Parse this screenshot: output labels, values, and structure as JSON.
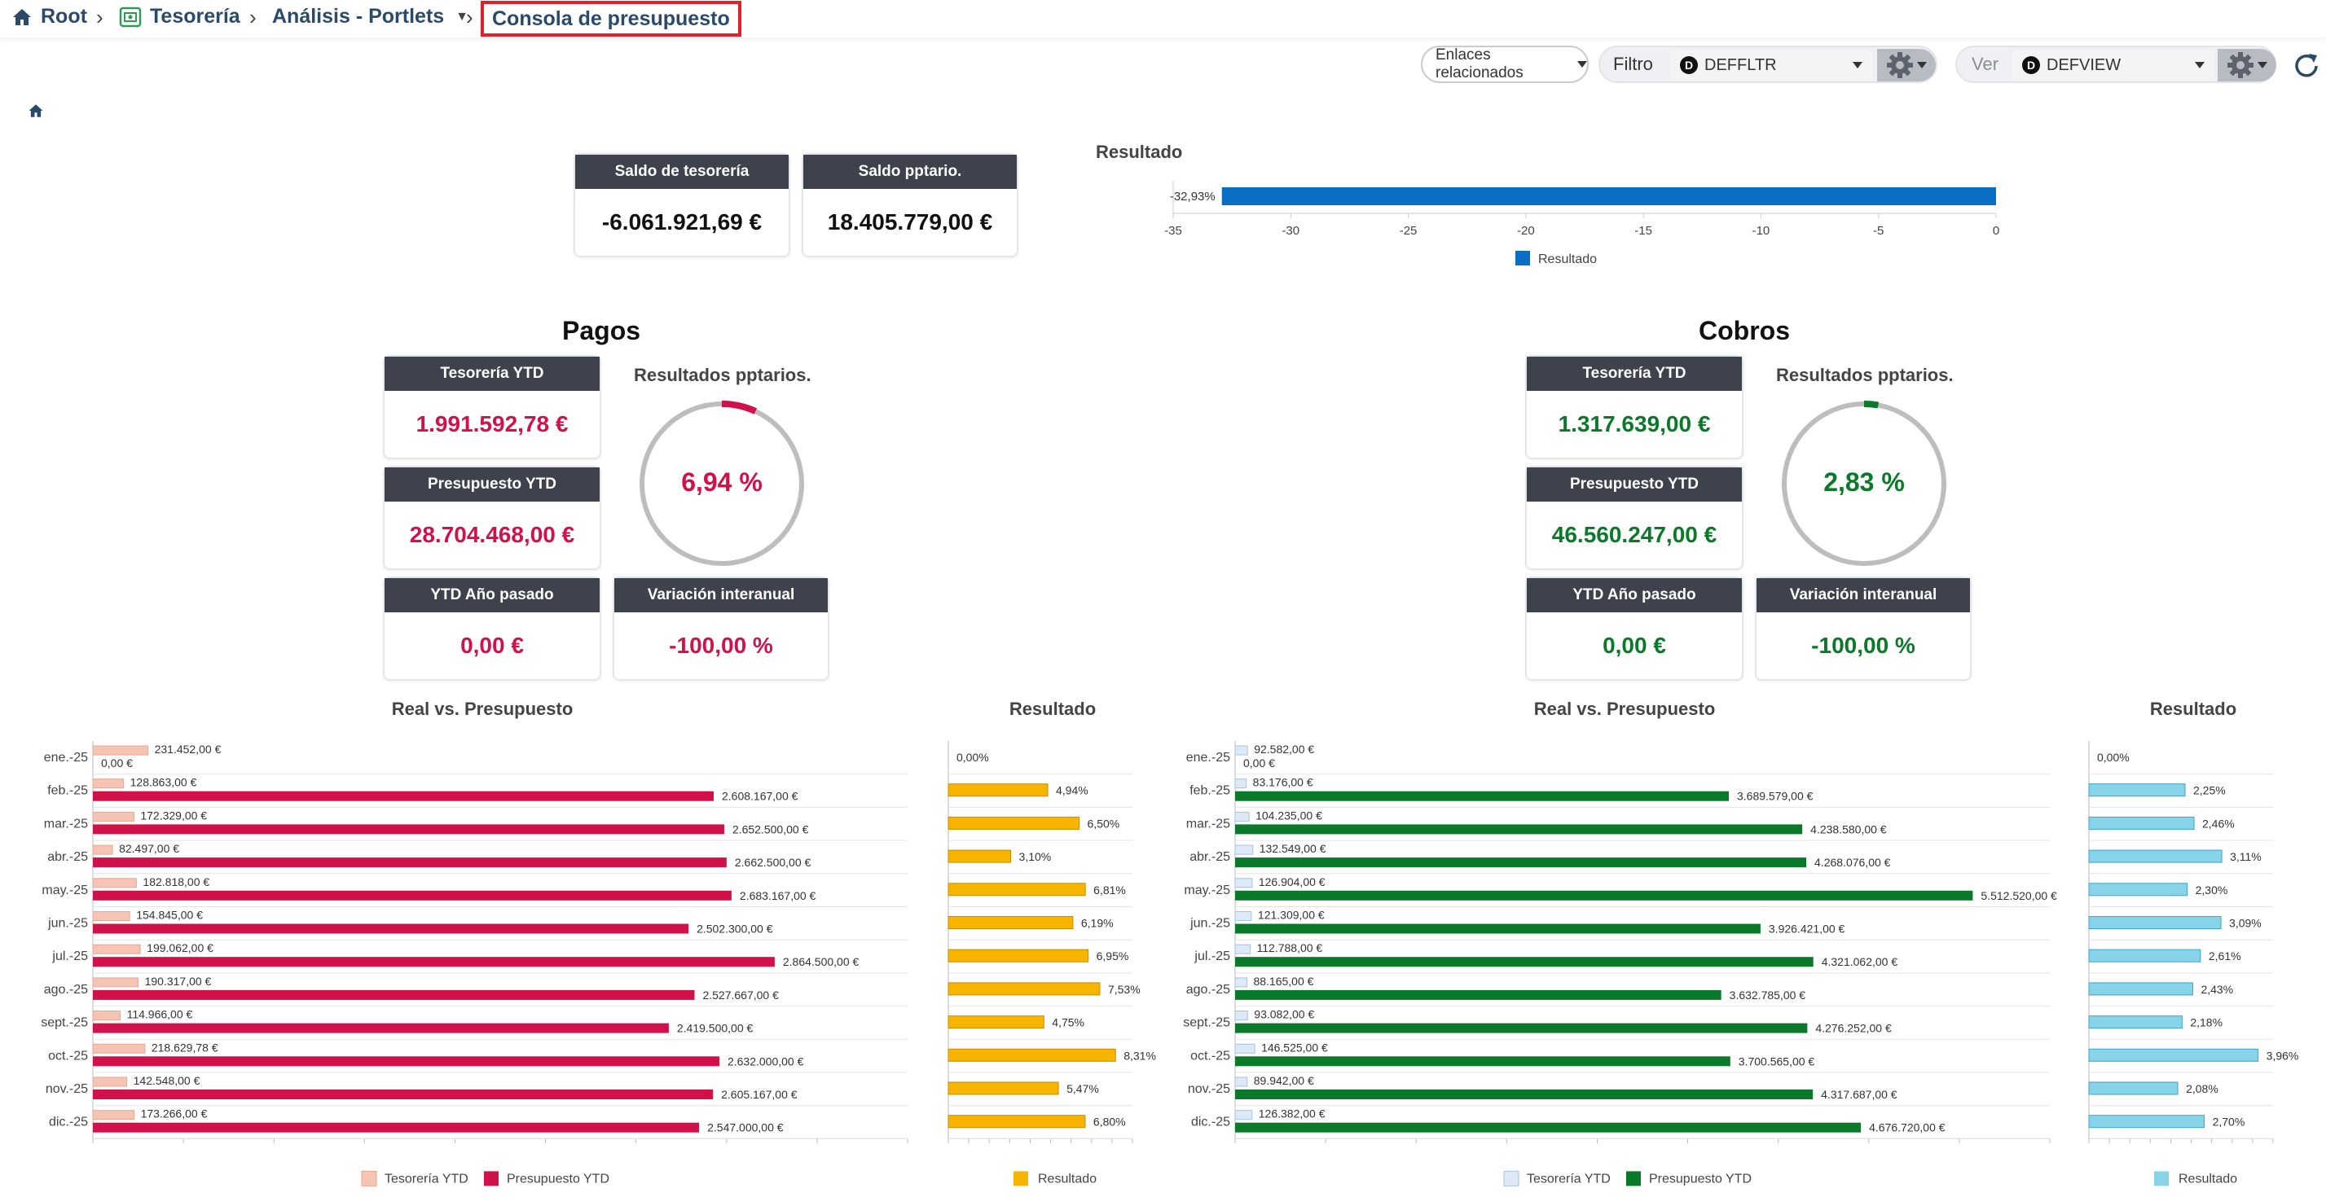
{
  "breadcrumb": {
    "root": "Root",
    "tesoreria": "Tesorería",
    "analisis": "Análisis - Portlets",
    "current": "Consola de presupuesto"
  },
  "toolbar": {
    "related_links": "Enlaces relacionados",
    "filter_label": "Filtro",
    "filter_value": "DEFFLTR",
    "view_label": "Ver",
    "view_value": "DEFVIEW",
    "badge_letter": "D"
  },
  "kpis": {
    "saldo_tesoreria": {
      "label": "Saldo de tesorería",
      "value": "-6.061.921,69 €"
    },
    "saldo_pptario": {
      "label": "Saldo pptario.",
      "value": "18.405.779,00 €"
    }
  },
  "resultado_chart": {
    "title": "Resultado",
    "value_label": "-32,93%",
    "legend": "Resultado",
    "color": "#0a6fc2"
  },
  "pagos": {
    "title": "Pagos",
    "color": "#d0114a",
    "tesoreria_ytd": {
      "label": "Tesorería YTD",
      "value": "1.991.592,78 €"
    },
    "presupuesto_ytd": {
      "label": "Presupuesto YTD",
      "value": "28.704.468,00 €"
    },
    "ytd_ano_pasado": {
      "label": "YTD Año pasado",
      "value": "0,00 €"
    },
    "variacion": {
      "label": "Variación interanual",
      "value": "-100,00 %"
    },
    "gauge": {
      "title": "Resultados pptarios.",
      "value_label": "6,94 %",
      "fraction": 0.0694
    }
  },
  "cobros": {
    "title": "Cobros",
    "color": "#0a7a2a",
    "tesoreria_ytd": {
      "label": "Tesorería YTD",
      "value": "1.317.639,00 €"
    },
    "presupuesto_ytd": {
      "label": "Presupuesto YTD",
      "value": "46.560.247,00 €"
    },
    "ytd_ano_pasado": {
      "label": "YTD Año pasado",
      "value": "0,00 €"
    },
    "variacion": {
      "label": "Variación interanual",
      "value": "-100,00 %"
    },
    "gauge": {
      "title": "Resultados pptarios.",
      "value_label": "2,83 %",
      "fraction": 0.0283
    }
  },
  "chart_data": [
    {
      "type": "bar",
      "orientation": "horizontal",
      "title": "Resultado",
      "categories": [
        ""
      ],
      "series": [
        {
          "name": "Resultado",
          "values": [
            -32.93
          ]
        }
      ],
      "data_labels": [
        "-32,93%"
      ],
      "xlim": [
        -35,
        0
      ],
      "xticks": [
        "-35",
        "-30",
        "-25",
        "-20",
        "-15",
        "-10",
        "-5",
        "0"
      ],
      "legend": "bottom"
    },
    {
      "type": "bar",
      "orientation": "horizontal",
      "title": "Real vs. Presupuesto",
      "categories": [
        "ene.-25",
        "feb.-25",
        "mar.-25",
        "abr.-25",
        "may.-25",
        "jun.-25",
        "jul.-25",
        "ago.-25",
        "sept.-25",
        "oct.-25",
        "nov.-25",
        "dic.-25"
      ],
      "series": [
        {
          "name": "Tesorería YTD",
          "color": "#f5c4b4",
          "values": [
            231452,
            128863,
            172329,
            82497,
            182818,
            154845,
            199062,
            190317,
            114966,
            218629.78,
            142548,
            173266
          ],
          "labels": [
            "231.452,00 €",
            "128.863,00 €",
            "172.329,00 €",
            "82.497,00 €",
            "182.818,00 €",
            "154.845,00 €",
            "199.062,00 €",
            "190.317,00 €",
            "114.966,00 €",
            "218.629,78 €",
            "142.548,00 €",
            "173.266,00 €"
          ]
        },
        {
          "name": "Presupuesto YTD",
          "color": "#d0114a",
          "values": [
            0,
            2608167,
            2652500,
            2662500,
            2683167,
            2502300,
            2864500,
            2527667,
            2419500,
            2632000,
            2605167,
            2547000
          ],
          "labels": [
            "0,00 €",
            "2.608.167,00 €",
            "2.652.500,00 €",
            "2.662.500,00 €",
            "2.683.167,00 €",
            "2.502.300,00 €",
            "2.864.500,00 €",
            "2.527.667,00 €",
            "2.419.500,00 €",
            "2.632.000,00 €",
            "2.605.167,00 €",
            "2.547.000,00 €"
          ]
        }
      ],
      "legend": "bottom"
    },
    {
      "type": "bar",
      "orientation": "horizontal",
      "title": "Resultado",
      "categories": [
        "ene.-25",
        "feb.-25",
        "mar.-25",
        "abr.-25",
        "may.-25",
        "jun.-25",
        "jul.-25",
        "ago.-25",
        "sept.-25",
        "oct.-25",
        "nov.-25",
        "dic.-25"
      ],
      "series": [
        {
          "name": "Resultado",
          "color": "#f7b500",
          "values": [
            0,
            4.94,
            6.5,
            3.1,
            6.81,
            6.19,
            6.95,
            7.53,
            4.75,
            8.31,
            5.47,
            6.8
          ],
          "labels": [
            "0,00%",
            "4,94%",
            "6,50%",
            "3,10%",
            "6,81%",
            "6,19%",
            "6,95%",
            "7,53%",
            "4,75%",
            "8,31%",
            "5,47%",
            "6,80%"
          ]
        }
      ],
      "legend": "bottom"
    },
    {
      "type": "bar",
      "orientation": "horizontal",
      "title": "Real vs. Presupuesto",
      "categories": [
        "ene.-25",
        "feb.-25",
        "mar.-25",
        "abr.-25",
        "may.-25",
        "jun.-25",
        "jul.-25",
        "ago.-25",
        "sept.-25",
        "oct.-25",
        "nov.-25",
        "dic.-25"
      ],
      "series": [
        {
          "name": "Tesorería YTD",
          "color": "#dde9f6",
          "values": [
            92582,
            83176,
            104235,
            132549,
            126904,
            121309,
            112788,
            88165,
            93082,
            146525,
            89942,
            126382
          ],
          "labels": [
            "92.582,00 €",
            "83.176,00 €",
            "104.235,00 €",
            "132.549,00 €",
            "126.904,00 €",
            "121.309,00 €",
            "112.788,00 €",
            "88.165,00 €",
            "93.082,00 €",
            "146.525,00 €",
            "89.942,00 €",
            "126.382,00 €"
          ]
        },
        {
          "name": "Presupuesto YTD",
          "color": "#0a7a2a",
          "values": [
            0,
            3689579,
            4238580,
            4268076,
            5512520,
            3926421,
            4321062,
            3632785,
            4276252,
            3700565,
            4317687,
            4676720
          ],
          "labels": [
            "0,00 €",
            "3.689.579,00 €",
            "4.238.580,00 €",
            "4.268.076,00 €",
            "5.512.520,00 €",
            "3.926.421,00 €",
            "4.321.062,00 €",
            "3.632.785,00 €",
            "4.276.252,00 €",
            "3.700.565,00 €",
            "4.317.687,00 €",
            "4.676.720,00 €"
          ]
        }
      ],
      "legend": "bottom"
    },
    {
      "type": "bar",
      "orientation": "horizontal",
      "title": "Resultado",
      "categories": [
        "ene.-25",
        "feb.-25",
        "mar.-25",
        "abr.-25",
        "may.-25",
        "jun.-25",
        "jul.-25",
        "ago.-25",
        "sept.-25",
        "oct.-25",
        "nov.-25",
        "dic.-25"
      ],
      "series": [
        {
          "name": "Resultado",
          "color": "#86d3ea",
          "values": [
            0,
            2.25,
            2.46,
            3.11,
            2.3,
            3.09,
            2.61,
            2.43,
            2.18,
            3.96,
            2.08,
            2.7
          ],
          "labels": [
            "0,00%",
            "2,25%",
            "2,46%",
            "3,11%",
            "2,30%",
            "3,09%",
            "2,61%",
            "2,43%",
            "2,18%",
            "3,96%",
            "2,08%",
            "2,70%"
          ]
        }
      ],
      "legend": "bottom"
    }
  ]
}
